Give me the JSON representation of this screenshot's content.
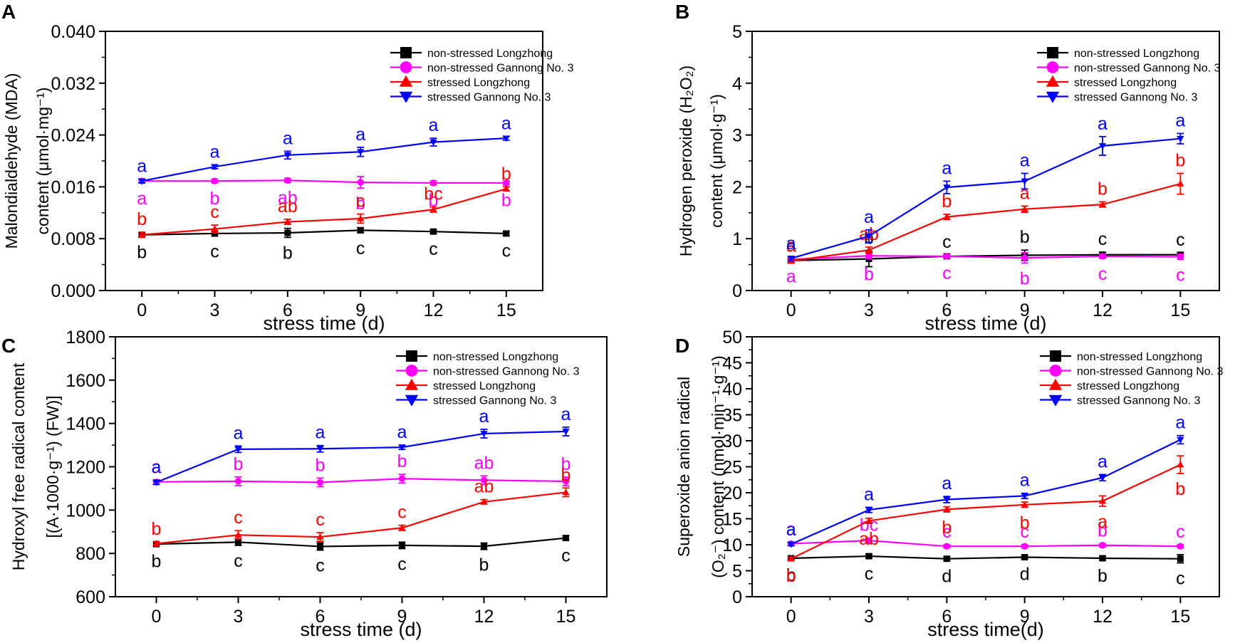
{
  "colors": {
    "nsL": "#000000",
    "nsG": "#ff00ff",
    "sL": "#ff0000",
    "sG": "#0000ff"
  },
  "chart_data": [
    {
      "panel": "A",
      "type": "line",
      "title": "",
      "xlabel": "stress time (d)",
      "ylabel_lines": [
        "Malondialdehyde (MDA)",
        "content (μmol·mg⁻¹)"
      ],
      "x": [
        0,
        3,
        6,
        9,
        12,
        15
      ],
      "xticks": [
        "0",
        "3",
        "6",
        "9",
        "12",
        "15"
      ],
      "ylim": [
        0,
        0.04
      ],
      "yticks": [
        0,
        0.008,
        0.016,
        0.024,
        0.032,
        0.04
      ],
      "ytick_labels": [
        "0.000",
        "0.008",
        "0.016",
        "0.024",
        "0.032",
        "0.040"
      ],
      "legend": [
        "non-stressed Longzhong",
        "non-stressed Gannong No. 3",
        "stressed Longzhong",
        "stressed Gannong No. 3"
      ],
      "series": [
        {
          "name": "non-stressed Longzhong",
          "color": "nsL",
          "marker": "square",
          "values": [
            0.0086,
            0.0088,
            0.0089,
            0.0093,
            0.0091,
            0.0088
          ],
          "err": [
            0.0003,
            0.0004,
            0.0007,
            0.0004,
            0.0003,
            0.0003
          ],
          "letters": [
            "b",
            "c",
            "b",
            "c",
            "c",
            "c"
          ],
          "labelpos": "below"
        },
        {
          "name": "non-stressed Gannong No. 3",
          "color": "nsG",
          "marker": "circle",
          "values": [
            0.0169,
            0.0169,
            0.017,
            0.0167,
            0.0166,
            0.0166
          ],
          "err": [
            0.0003,
            0.0003,
            0.0003,
            0.0009,
            0.0003,
            0.0003
          ],
          "letters": [
            "a",
            "b",
            "ab",
            "b",
            "b",
            "b"
          ],
          "labelpos": "below"
        },
        {
          "name": "stressed Longzhong",
          "color": "sL",
          "marker": "triangle",
          "values": [
            0.0086,
            0.0095,
            0.0106,
            0.0111,
            0.0125,
            0.0157
          ],
          "err": [
            0.0004,
            0.0006,
            0.0004,
            0.0007,
            0.0004,
            0.0003
          ],
          "letters": [
            "b",
            "c",
            "ab",
            "c",
            "bc",
            "b"
          ],
          "labelpos": "above"
        },
        {
          "name": "stressed Gannong No. 3",
          "color": "sG",
          "marker": "tridown",
          "values": [
            0.0169,
            0.0191,
            0.0209,
            0.0214,
            0.0229,
            0.0235
          ],
          "err": [
            0.0003,
            0.0003,
            0.0006,
            0.0007,
            0.0006,
            0.0003
          ],
          "letters": [
            "a",
            "a",
            "a",
            "a",
            "a",
            "a"
          ],
          "labelpos": "above"
        }
      ]
    },
    {
      "panel": "B",
      "type": "line",
      "title": "",
      "xlabel": "stress time (d)",
      "ylabel_lines": [
        "Hydrogen peroxide (H₂O₂)",
        "content (μmol·g⁻¹)"
      ],
      "x": [
        0,
        3,
        6,
        9,
        12,
        15
      ],
      "xticks": [
        "0",
        "3",
        "6",
        "9",
        "12",
        "15"
      ],
      "ylim": [
        0,
        5
      ],
      "yticks": [
        0,
        1,
        2,
        3,
        4,
        5
      ],
      "ytick_labels": [
        "0",
        "1",
        "2",
        "3",
        "4",
        "5"
      ],
      "legend": [
        "non-stressed Longzhong",
        "non-stressed Gannong No. 3",
        "stressed Longzhong",
        "stressed Gannong No. 3"
      ],
      "series": [
        {
          "name": "non-stressed Longzhong",
          "color": "nsL",
          "marker": "square",
          "values": [
            0.58,
            0.61,
            0.66,
            0.68,
            0.69,
            0.69
          ],
          "err": [
            0.04,
            0.15,
            0.03,
            0.1,
            0.05,
            0.04
          ],
          "letters": [
            "a",
            "b",
            "c",
            "b",
            "c",
            "c"
          ],
          "labelpos": "above"
        },
        {
          "name": "non-stressed Gannong No. 3",
          "color": "nsG",
          "marker": "circle",
          "values": [
            0.6,
            0.67,
            0.66,
            0.63,
            0.66,
            0.65
          ],
          "err": [
            0.03,
            0.06,
            0.03,
            0.1,
            0.04,
            0.05
          ],
          "letters": [
            "a",
            "b",
            "c",
            "b",
            "c",
            "c"
          ],
          "labelpos": "below"
        },
        {
          "name": "stressed Longzhong",
          "color": "sL",
          "marker": "triangle",
          "values": [
            0.57,
            0.78,
            1.42,
            1.57,
            1.66,
            2.06
          ],
          "err": [
            0.04,
            0.06,
            0.05,
            0.06,
            0.05,
            0.2
          ],
          "letters": [
            "a",
            "ab",
            "b",
            "a",
            "b",
            "b"
          ],
          "labelpos": "above"
        },
        {
          "name": "stressed Gannong No. 3",
          "color": "sG",
          "marker": "tridown",
          "values": [
            0.62,
            1.05,
            1.99,
            2.11,
            2.79,
            2.93
          ],
          "err": [
            0.04,
            0.12,
            0.12,
            0.15,
            0.18,
            0.1
          ],
          "letters": [
            "a",
            "a",
            "a",
            "a",
            "a",
            "a"
          ],
          "labelpos": "above"
        }
      ]
    },
    {
      "panel": "C",
      "type": "line",
      "title": "",
      "xlabel": "stress time (d)",
      "ylabel_lines": [
        "Hydroxyl free radical content",
        "[(A·1000·g⁻¹) (FW)]"
      ],
      "x": [
        0,
        3,
        6,
        9,
        12,
        15
      ],
      "xticks": [
        "0",
        "3",
        "6",
        "9",
        "12",
        "15"
      ],
      "ylim": [
        600,
        1800
      ],
      "yticks": [
        600,
        800,
        1000,
        1200,
        1400,
        1600,
        1800
      ],
      "ytick_labels": [
        "600",
        "800",
        "1000",
        "1200",
        "1400",
        "1600",
        "1800"
      ],
      "legend": [
        "non-stressed Longzhong",
        "non-stressed Gannong No. 3",
        "stressed Longzhong",
        "stressed Gannong No. 3"
      ],
      "series": [
        {
          "name": "non-stressed Longzhong",
          "color": "nsL",
          "marker": "square",
          "values": [
            843,
            852,
            832,
            837,
            833,
            871
          ],
          "err": [
            8,
            15,
            17,
            15,
            15,
            10
          ],
          "letters": [
            "b",
            "c",
            "c",
            "c",
            "b",
            "c"
          ],
          "labelpos": "below"
        },
        {
          "name": "non-stressed Gannong No. 3",
          "color": "nsG",
          "marker": "circle",
          "values": [
            1130,
            1133,
            1128,
            1145,
            1138,
            1133
          ],
          "err": [
            10,
            20,
            20,
            20,
            20,
            20
          ],
          "letters": [
            "a",
            "b",
            "b",
            "b",
            "ab",
            "b"
          ],
          "labelpos": "above"
        },
        {
          "name": "stressed Longzhong",
          "color": "sL",
          "marker": "triangle",
          "values": [
            845,
            885,
            876,
            918,
            1038,
            1082
          ],
          "err": [
            8,
            20,
            20,
            12,
            10,
            20
          ],
          "letters": [
            "b",
            "c",
            "c",
            "c",
            "ab",
            "b"
          ],
          "labelpos": "above"
        },
        {
          "name": "stressed Gannong No. 3",
          "color": "sG",
          "marker": "tridown",
          "values": [
            1128,
            1281,
            1283,
            1290,
            1353,
            1363
          ],
          "err": [
            10,
            15,
            15,
            10,
            20,
            20
          ],
          "letters": [
            "a",
            "a",
            "a",
            "a",
            "a",
            "a"
          ],
          "labelpos": "above"
        }
      ]
    },
    {
      "panel": "D",
      "type": "line",
      "title": "",
      "xlabel": "stress time(d)",
      "ylabel_lines": [
        "Superoxide anion radical",
        "(O₂⁻) content (nmol·min⁻¹·g⁻¹)"
      ],
      "x": [
        0,
        3,
        6,
        9,
        12,
        15
      ],
      "xticks": [
        "0",
        "3",
        "6",
        "9",
        "12",
        "15"
      ],
      "ylim": [
        0,
        50
      ],
      "yticks": [
        0,
        5,
        10,
        15,
        20,
        25,
        30,
        35,
        40,
        45,
        50
      ],
      "ytick_labels": [
        "0",
        "5",
        "10",
        "15",
        "20",
        "25",
        "30",
        "35",
        "40",
        "45",
        "50"
      ],
      "legend": [
        "non-stressed Longzhong",
        "non-stressed Gannong No. 3",
        "stressed Longzhong",
        "stressed Gannong No. 3"
      ],
      "series": [
        {
          "name": "non-stressed Longzhong",
          "color": "nsL",
          "marker": "square",
          "values": [
            7.4,
            7.8,
            7.3,
            7.6,
            7.4,
            7.3
          ],
          "err": [
            0.3,
            0.4,
            0.4,
            0.3,
            0.4,
            0.8
          ],
          "letters": [
            "b",
            "c",
            "d",
            "d",
            "b",
            "c"
          ],
          "labelpos": "below"
        },
        {
          "name": "non-stressed Gannong No. 3",
          "color": "nsG",
          "marker": "circle",
          "values": [
            10.2,
            10.8,
            9.7,
            9.7,
            9.9,
            9.7
          ],
          "err": [
            0.3,
            0.5,
            0.3,
            0.3,
            0.3,
            0.3
          ],
          "letters": [
            "a",
            "bc",
            "c",
            "c",
            "b",
            "c"
          ],
          "labelpos": "above"
        },
        {
          "name": "stressed Longzhong",
          "color": "sL",
          "marker": "triangle",
          "values": [
            7.3,
            14.6,
            16.8,
            17.7,
            18.4,
            25.4
          ],
          "err": [
            0.3,
            0.5,
            0.5,
            0.5,
            1.0,
            1.7
          ],
          "letters": [
            "b",
            "ab",
            "b",
            "b",
            "a",
            "b"
          ],
          "labelpos": "below"
        },
        {
          "name": "stressed Gannong No. 3",
          "color": "sG",
          "marker": "tridown",
          "values": [
            10.1,
            16.7,
            18.7,
            19.4,
            22.9,
            30.2
          ],
          "err": [
            0.3,
            0.5,
            0.6,
            0.5,
            0.6,
            0.8
          ],
          "letters": [
            "a",
            "a",
            "a",
            "a",
            "a",
            "a"
          ],
          "labelpos": "above"
        }
      ]
    }
  ]
}
